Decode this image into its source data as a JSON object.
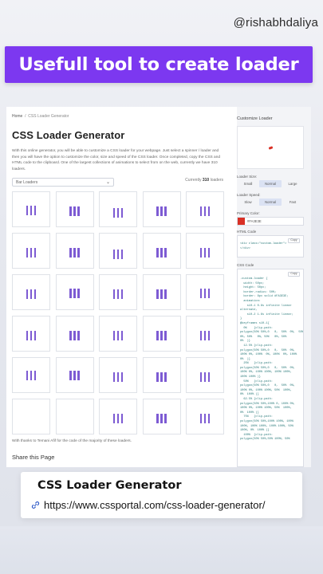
{
  "overlay": {
    "handle": "@rishabhdaliya",
    "banner_text": "Usefull tool to create loader",
    "banner_color": "#7c38f0"
  },
  "page": {
    "breadcrumb": {
      "home": "Home",
      "separator": "/",
      "current": "CSS Loader Generator"
    },
    "title": "CSS Loader Generator",
    "description": "With this online generator, you will be able to customize a CSS loader for your webpage. Just select a spinner / loader and then you will have the option to customize the color, size and speed of the CSS loader. Once completed, copy the CSS and HTML code to the clipboard. One of the largest collections of animations to select from on the web, currently we have 310 loaders.",
    "filter_select": {
      "value": "Bar Loaders",
      "icon": "chevron-down-icon"
    },
    "count": {
      "prefix": "Currently",
      "number": "310",
      "suffix": "loaders"
    },
    "thanks": "With thanks to Temani Afif for the code of the majority of these loaders.",
    "share": "Share this Page",
    "loader_color": "#7d5bd3"
  },
  "sidebar": {
    "heading": "Customize Loader",
    "loader_size": {
      "label": "Loader Size:",
      "options": [
        "Small",
        "Normal",
        "Large"
      ],
      "selected": "Normal"
    },
    "loader_speed": {
      "label": "Loader Speed:",
      "options": [
        "Slow",
        "Normal",
        "Fast"
      ],
      "selected": "Normal"
    },
    "primary_color": {
      "label": "Primary Color:",
      "value": "#FA3E3E",
      "swatch": "#d93025"
    },
    "html_code": {
      "label": "HTML Code",
      "copy": "Copy",
      "code": "<div class=\"custom-loader\"></div>"
    },
    "css_code": {
      "label": "CSS Code",
      "copy": "Copy",
      "lines": [
        ".custom-loader {",
        "  width: 50px;",
        "  height: 50px;",
        "  border-radius: 50%;",
        "  border: 8px solid #FA3E3E;",
        "  animation:",
        "    s10-1 0.8s infinite linear",
        "alternate,",
        "    s10-2 1.6s infinite linear;",
        "}",
        "@keyframes s10-1{",
        "  0%    {clip-path:",
        "polygon(50% 50%,0   0,  50%  0%,  50%",
        "0%, 50%   0%, 50%   0%, 50%",
        "0%  )}",
        "  12.5% {clip-path:",
        "polygon(50% 50%,0   0,  50%  0%,",
        "100% 0%, 100%  0%, 100%  0%, 100%",
        "0%  )}",
        "  25%   {clip-path:",
        "polygon(50% 50%,0   0,  50%  0%,",
        "100% 0%, 100% 100%, 100% 100%,",
        "100% 100% )}",
        "  50%   {clip-path:",
        "polygon(50% 50%,0   0,  50%  0%,",
        "100% 0%, 100% 100%, 50%  100%,",
        "0%  100% )}",
        "  62.5% {clip-path:",
        "polygon(50% 50%,100% 0, 100% 0%,",
        "100% 0%, 100% 100%, 50%  100%,",
        "0%  100% )}",
        "  75%   {clip-path:",
        "polygon(50% 50%,100% 100%, 100%",
        "100%, 100% 100%, 100% 100%, 50%",
        "100%, 0%  100% )}",
        "  100%  {clip-path:",
        "polygon(50% 50%,50% 100%, 50%"
      ]
    }
  },
  "card": {
    "title": "CSS Loader Generator",
    "url": "https://www.cssportal.com/css-loader-generator/",
    "icon": "link-icon"
  }
}
